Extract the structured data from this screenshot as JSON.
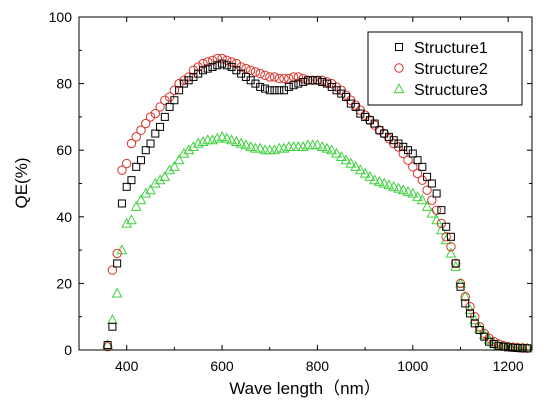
{
  "chart_data": {
    "type": "scatter",
    "title": "",
    "xlabel": "Wave length（nm）",
    "ylabel": "QE(%)",
    "xlim": [
      300,
      1250
    ],
    "ylim": [
      0,
      100
    ],
    "x_ticks": [
      400,
      600,
      800,
      1000,
      1200
    ],
    "y_ticks": [
      0,
      20,
      40,
      60,
      80,
      100
    ],
    "grid": false,
    "legend_position": "top-right",
    "series": [
      {
        "name": "Structure1",
        "marker": "square",
        "color": "#000000",
        "x": [
          360,
          370,
          380,
          390,
          400,
          410,
          420,
          430,
          440,
          450,
          460,
          470,
          480,
          490,
          500,
          510,
          520,
          530,
          540,
          550,
          560,
          570,
          580,
          590,
          600,
          610,
          620,
          630,
          640,
          650,
          660,
          670,
          680,
          690,
          700,
          710,
          720,
          730,
          740,
          750,
          760,
          770,
          780,
          790,
          800,
          810,
          820,
          830,
          840,
          850,
          860,
          870,
          880,
          890,
          900,
          910,
          920,
          930,
          940,
          950,
          960,
          970,
          980,
          990,
          1000,
          1010,
          1020,
          1030,
          1040,
          1050,
          1060,
          1070,
          1080,
          1090,
          1100,
          1110,
          1120,
          1130,
          1140,
          1150,
          1160,
          1170,
          1180,
          1190,
          1200,
          1210,
          1220,
          1230,
          1240
        ],
        "values": [
          1.5,
          7,
          26,
          44,
          49,
          51,
          55,
          57,
          60,
          62,
          65,
          67,
          70,
          73,
          75,
          78,
          80,
          81,
          82,
          83,
          84,
          84.5,
          85,
          85.5,
          86,
          85.5,
          85,
          84,
          83,
          82,
          81,
          80,
          79,
          78.5,
          78,
          78,
          78,
          78,
          79,
          79.5,
          80,
          80.5,
          81,
          81,
          81,
          80.5,
          80,
          79,
          78,
          77,
          76,
          74,
          73,
          71,
          70,
          69,
          68,
          66,
          65,
          64,
          63,
          62,
          61,
          60,
          59,
          57,
          55,
          52,
          50,
          47,
          42,
          37,
          34,
          26,
          19,
          14,
          11,
          8,
          6,
          4,
          2.5,
          1.8,
          1.2,
          1,
          0.8,
          0.7,
          0.6,
          0.5,
          0.5
        ]
      },
      {
        "name": "Structure2",
        "marker": "circle",
        "color": "#d9342b",
        "x": [
          360,
          370,
          380,
          390,
          400,
          410,
          420,
          430,
          440,
          450,
          460,
          470,
          480,
          490,
          500,
          510,
          520,
          530,
          540,
          550,
          560,
          570,
          580,
          590,
          600,
          610,
          620,
          630,
          640,
          650,
          660,
          670,
          680,
          690,
          700,
          710,
          720,
          730,
          740,
          750,
          760,
          770,
          780,
          790,
          800,
          810,
          820,
          830,
          840,
          850,
          860,
          870,
          880,
          890,
          900,
          910,
          920,
          930,
          940,
          950,
          960,
          970,
          980,
          990,
          1000,
          1010,
          1020,
          1030,
          1040,
          1050,
          1060,
          1070,
          1080,
          1090,
          1100,
          1110,
          1120,
          1130,
          1140,
          1150,
          1160,
          1170,
          1180,
          1190,
          1200,
          1210,
          1220,
          1230,
          1240
        ],
        "values": [
          1,
          24,
          29,
          54,
          56,
          62,
          64,
          66,
          68,
          70,
          71,
          73,
          75,
          76,
          78,
          80,
          81,
          82,
          84,
          85,
          86,
          86.5,
          87,
          87.5,
          87.5,
          87,
          86.5,
          86,
          85,
          84.5,
          84,
          83.5,
          83,
          82.5,
          82,
          82,
          81.5,
          81.5,
          81.5,
          82,
          82,
          81.5,
          81,
          81,
          81,
          81,
          80.5,
          80,
          79,
          78,
          76.5,
          75,
          73.5,
          72,
          70.5,
          69,
          67.5,
          66,
          65,
          63.5,
          62,
          61,
          59,
          57,
          55,
          53,
          51,
          48,
          45,
          42,
          38,
          34,
          31,
          26,
          20,
          16,
          13,
          10,
          7,
          5,
          3.5,
          2.5,
          1.8,
          1.3,
          1,
          0.8,
          0.7,
          0.6,
          0.5
        ]
      },
      {
        "name": "Structure3",
        "marker": "triangle",
        "color": "#3fd23f",
        "x": [
          360,
          370,
          380,
          390,
          400,
          410,
          420,
          430,
          440,
          450,
          460,
          470,
          480,
          490,
          500,
          510,
          520,
          530,
          540,
          550,
          560,
          570,
          580,
          590,
          600,
          610,
          620,
          630,
          640,
          650,
          660,
          670,
          680,
          690,
          700,
          710,
          720,
          730,
          740,
          750,
          760,
          770,
          780,
          790,
          800,
          810,
          820,
          830,
          840,
          850,
          860,
          870,
          880,
          890,
          900,
          910,
          920,
          930,
          940,
          950,
          960,
          970,
          980,
          990,
          1000,
          1010,
          1020,
          1030,
          1040,
          1050,
          1060,
          1070,
          1080,
          1090,
          1100,
          1110,
          1120,
          1130,
          1140,
          1150,
          1160,
          1170,
          1180,
          1190,
          1200,
          1210,
          1220,
          1230,
          1240
        ],
        "values": [
          1.5,
          9,
          17,
          30,
          38,
          39,
          43,
          45,
          47,
          48,
          50,
          51,
          52,
          54,
          55,
          57,
          59,
          60,
          61,
          62,
          62.5,
          63,
          63,
          63.5,
          64,
          63.5,
          63,
          62.5,
          62,
          61.5,
          61,
          60.5,
          60.5,
          60,
          60,
          60,
          60.5,
          60.5,
          61,
          61,
          61,
          61,
          61.5,
          61.5,
          61.5,
          61,
          60.5,
          60,
          59,
          58,
          57,
          56,
          55,
          54,
          53,
          52,
          51,
          50.5,
          50,
          49.5,
          49,
          48.5,
          48,
          47.5,
          47,
          46,
          45,
          43,
          41,
          39,
          36,
          33,
          29,
          25,
          20,
          16,
          12,
          9,
          6.5,
          4.5,
          3,
          2,
          1.5,
          1.2,
          1,
          0.8,
          0.7,
          0.6,
          0.5
        ]
      }
    ]
  }
}
